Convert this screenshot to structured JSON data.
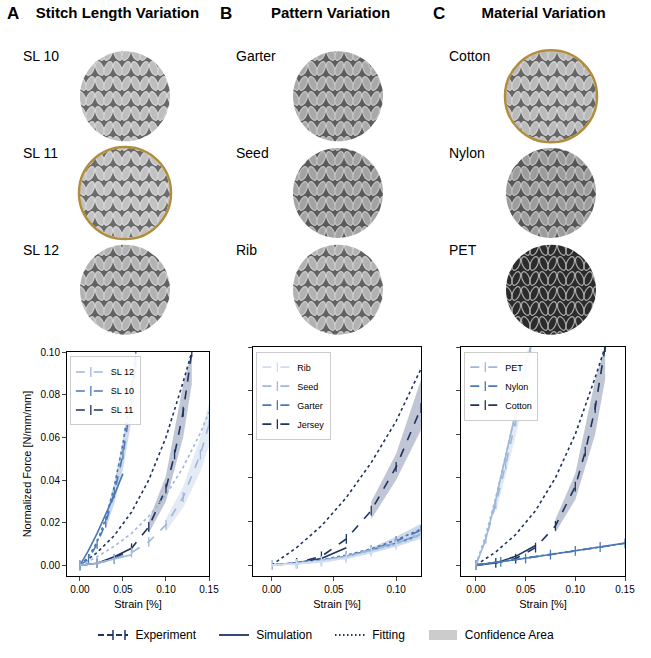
{
  "panels": [
    {
      "letter": "A",
      "title": "Stitch Length Variation",
      "selected": "SL 11",
      "swatches": [
        {
          "label": "SL 10",
          "color": "#bdbdbd"
        },
        {
          "label": "SL 11",
          "color": "#c2c2c2"
        },
        {
          "label": "SL 12",
          "color": "#b3b3b3"
        }
      ]
    },
    {
      "letter": "B",
      "title": "Pattern Variation",
      "swatches": [
        {
          "label": "Garter",
          "color": "#a9a9a9"
        },
        {
          "label": "Seed",
          "color": "#a3a3a3"
        },
        {
          "label": "Rib",
          "color": "#b2b2b2"
        }
      ]
    },
    {
      "letter": "C",
      "title": "Material Variation",
      "selected": "Cotton",
      "swatches": [
        {
          "label": "Cotton",
          "color": "#bababa"
        },
        {
          "label": "Nylon",
          "color": "#9c9c9c"
        },
        {
          "label": "PET",
          "color": "#2b2b2b"
        }
      ]
    }
  ],
  "chart_data": [
    {
      "type": "line",
      "xlabel": "Strain [%]",
      "ylabel": "Normalized Force [N/mm/mm]",
      "legend": "upper left",
      "grid": false,
      "xlim": [
        -0.015,
        0.15
      ],
      "ylim": [
        -0.005,
        0.1
      ],
      "xticks": [
        {
          "value": 0,
          "label": "0.00"
        },
        {
          "value": 0.05,
          "label": "0.05"
        },
        {
          "value": 0.1,
          "label": "0.10"
        },
        {
          "value": 0.15,
          "label": "0.15"
        }
      ],
      "yticks": [
        {
          "value": 0,
          "label": "0.00"
        },
        {
          "value": 0.02,
          "label": "0.02"
        },
        {
          "value": 0.04,
          "label": "0.04"
        },
        {
          "value": 0.06,
          "label": "0.06"
        },
        {
          "value": 0.08,
          "label": "0.08"
        },
        {
          "value": 0.1,
          "label": "0.10"
        }
      ],
      "series": [
        {
          "name": "SL 11",
          "color": "#1d3461",
          "x": [
            0,
            0.02,
            0.04,
            0.06,
            0.08,
            0.1,
            0.11,
            0.12,
            0.13
          ],
          "values": [
            0,
            0.001,
            0.003,
            0.008,
            0.018,
            0.036,
            0.052,
            0.072,
            0.1
          ],
          "simulation": {
            "x": [
              0,
              0.02,
              0.04,
              0.06
            ],
            "values": [
              0,
              0.001,
              0.004,
              0.008
            ]
          },
          "fitting": {
            "x": [
              0,
              0.02,
              0.04,
              0.06,
              0.08,
              0.1,
              0.12,
              0.13
            ],
            "values": [
              0,
              0.006,
              0.014,
              0.025,
              0.04,
              0.06,
              0.086,
              0.1
            ]
          },
          "confidence": {
            "x": [
              0.08,
              0.1,
              0.12,
              0.13
            ],
            "lower": [
              0.015,
              0.03,
              0.06,
              0.085
            ],
            "upper": [
              0.021,
              0.042,
              0.085,
              0.1
            ]
          }
        },
        {
          "name": "SL 10",
          "color": "#4a78b5",
          "x": [
            0,
            0.01,
            0.02,
            0.03,
            0.04,
            0.05,
            0.06,
            0.065
          ],
          "values": [
            0,
            0.003,
            0.01,
            0.02,
            0.034,
            0.052,
            0.078,
            0.095
          ],
          "simulation": {
            "x": [
              0,
              0.01,
              0.02,
              0.03,
              0.04,
              0.05
            ],
            "values": [
              0,
              0.007,
              0.015,
              0.024,
              0.033,
              0.043
            ]
          },
          "fitting": {
            "x": [
              0,
              0.01,
              0.02,
              0.03,
              0.04,
              0.05,
              0.06,
              0.065
            ],
            "values": [
              0,
              0.004,
              0.011,
              0.022,
              0.037,
              0.057,
              0.083,
              0.1
            ]
          },
          "confidence": {
            "x": [
              0.03,
              0.04,
              0.05,
              0.06,
              0.065
            ],
            "lower": [
              0.017,
              0.029,
              0.045,
              0.068,
              0.083
            ],
            "upper": [
              0.023,
              0.039,
              0.059,
              0.088,
              0.1
            ]
          }
        },
        {
          "name": "SL 12",
          "color": "#9db8dc",
          "x": [
            0,
            0.02,
            0.04,
            0.06,
            0.08,
            0.1,
            0.12,
            0.14,
            0.15
          ],
          "values": [
            0,
            0.001,
            0.003,
            0.006,
            0.011,
            0.019,
            0.032,
            0.052,
            0.066
          ],
          "simulation": {
            "x": [
              0,
              0.02,
              0.04,
              0.06
            ],
            "values": [
              0,
              0.001,
              0.003,
              0.005
            ]
          },
          "fitting": {
            "x": [
              0,
              0.02,
              0.04,
              0.06,
              0.08,
              0.1,
              0.12,
              0.14,
              0.15
            ],
            "values": [
              0,
              0.004,
              0.009,
              0.015,
              0.023,
              0.033,
              0.046,
              0.062,
              0.072
            ]
          },
          "confidence": {
            "x": [
              0.1,
              0.12,
              0.14,
              0.15
            ],
            "lower": [
              0.016,
              0.027,
              0.044,
              0.056
            ],
            "upper": [
              0.022,
              0.037,
              0.06,
              0.076
            ]
          }
        }
      ]
    },
    {
      "type": "line",
      "xlabel": "Strain [%]",
      "legend": "upper left",
      "grid": false,
      "tick_labels": "x",
      "xlim": [
        -0.015,
        0.12
      ],
      "ylim": [
        -0.005,
        0.1
      ],
      "xticks": [
        {
          "value": 0,
          "label": "0.00"
        },
        {
          "value": 0.05,
          "label": "0.05"
        },
        {
          "value": 0.1,
          "label": "0.10"
        }
      ],
      "yticks": [
        0,
        0.02,
        0.04,
        0.06,
        0.08,
        0.1
      ],
      "series": [
        {
          "name": "Jersey",
          "color": "#1d3461",
          "x": [
            0,
            0.02,
            0.04,
            0.06,
            0.08,
            0.1,
            0.12
          ],
          "values": [
            0,
            0.001,
            0.004,
            0.012,
            0.025,
            0.045,
            0.072
          ],
          "simulation": {
            "x": [
              0,
              0.02,
              0.04,
              0.06
            ],
            "values": [
              0,
              0.001,
              0.003,
              0.008
            ]
          },
          "fitting": {
            "x": [
              0,
              0.02,
              0.04,
              0.06,
              0.08,
              0.1,
              0.12
            ],
            "values": [
              0,
              0.008,
              0.018,
              0.031,
              0.047,
              0.066,
              0.09
            ]
          },
          "confidence": {
            "x": [
              0.08,
              0.1,
              0.12
            ],
            "lower": [
              0.021,
              0.039,
              0.062
            ],
            "upper": [
              0.029,
              0.051,
              0.085
            ]
          }
        },
        {
          "name": "Garter",
          "color": "#4a78b5",
          "x": [
            0,
            0.02,
            0.04,
            0.06,
            0.08,
            0.1,
            0.12
          ],
          "values": [
            0,
            0.0005,
            0.002,
            0.004,
            0.007,
            0.011,
            0.016
          ],
          "simulation": {
            "x": [
              0,
              0.02,
              0.04,
              0.06,
              0.08,
              0.1,
              0.12
            ],
            "values": [
              0,
              0.001,
              0.002,
              0.004,
              0.007,
              0.01,
              0.014
            ]
          },
          "fitting": {
            "x": [
              0,
              0.02,
              0.04,
              0.06,
              0.08,
              0.1,
              0.12
            ],
            "values": [
              0,
              0.001,
              0.0025,
              0.0045,
              0.0075,
              0.0115,
              0.0165
            ]
          },
          "confidence": {
            "x": [
              0.08,
              0.1,
              0.12
            ],
            "lower": [
              0.006,
              0.009,
              0.013
            ],
            "upper": [
              0.008,
              0.013,
              0.019
            ]
          }
        },
        {
          "name": "Seed",
          "color": "#9db8dc",
          "x": [
            0,
            0.02,
            0.04,
            0.06,
            0.08,
            0.1,
            0.12
          ],
          "values": [
            0,
            0.0005,
            0.002,
            0.004,
            0.007,
            0.01,
            0.014
          ],
          "simulation": {
            "x": [
              0,
              0.02,
              0.04,
              0.06,
              0.08,
              0.1,
              0.12
            ],
            "values": [
              0,
              0.0008,
              0.002,
              0.0038,
              0.0065,
              0.0095,
              0.013
            ]
          },
          "fitting": {
            "x": [
              0,
              0.02,
              0.04,
              0.06,
              0.08,
              0.1,
              0.12
            ],
            "values": [
              0,
              0.001,
              0.0022,
              0.004,
              0.0068,
              0.0102,
              0.0145
            ]
          }
        },
        {
          "name": "Rib",
          "color": "#d0ddef",
          "x": [
            0,
            0.02,
            0.04,
            0.06,
            0.08,
            0.1,
            0.12
          ],
          "values": [
            0,
            0.0005,
            0.0015,
            0.003,
            0.006,
            0.009,
            0.013
          ],
          "simulation": {
            "x": [
              0,
              0.02,
              0.04,
              0.06,
              0.08,
              0.1,
              0.12
            ],
            "values": [
              0,
              0.0006,
              0.0016,
              0.0032,
              0.0058,
              0.0088,
              0.0125
            ]
          },
          "fitting": {
            "x": [
              0,
              0.02,
              0.04,
              0.06,
              0.08,
              0.1,
              0.12
            ],
            "values": [
              0,
              0.0008,
              0.0018,
              0.0035,
              0.006,
              0.0092,
              0.0132
            ]
          }
        }
      ]
    },
    {
      "type": "line",
      "xlabel": "Strain [%]",
      "legend": "upper left",
      "grid": false,
      "tick_labels": "x",
      "xlim": [
        -0.015,
        0.15
      ],
      "ylim": [
        -0.005,
        0.1
      ],
      "xticks": [
        {
          "value": 0,
          "label": "0.00"
        },
        {
          "value": 0.05,
          "label": "0.05"
        },
        {
          "value": 0.1,
          "label": "0.10"
        },
        {
          "value": 0.15,
          "label": "0.15"
        }
      ],
      "yticks": [
        0,
        0.02,
        0.04,
        0.06,
        0.08,
        0.1
      ],
      "series": [
        {
          "name": "Cotton",
          "color": "#1d3461",
          "x": [
            0,
            0.02,
            0.04,
            0.06,
            0.08,
            0.1,
            0.11,
            0.12,
            0.13
          ],
          "values": [
            0,
            0.001,
            0.003,
            0.008,
            0.018,
            0.036,
            0.052,
            0.072,
            0.1
          ],
          "simulation": {
            "x": [
              0,
              0.02,
              0.04,
              0.06
            ],
            "values": [
              0,
              0.001,
              0.004,
              0.009
            ]
          },
          "fitting": {
            "x": [
              0,
              0.02,
              0.04,
              0.06,
              0.08,
              0.1,
              0.12,
              0.13
            ],
            "values": [
              0,
              0.006,
              0.014,
              0.025,
              0.04,
              0.06,
              0.086,
              0.1
            ]
          },
          "confidence": {
            "x": [
              0.08,
              0.1,
              0.12,
              0.13
            ],
            "lower": [
              0.015,
              0.03,
              0.06,
              0.085
            ],
            "upper": [
              0.021,
              0.042,
              0.085,
              0.1
            ]
          }
        },
        {
          "name": "Nylon",
          "color": "#4a78b5",
          "x": [
            0,
            0.025,
            0.05,
            0.075,
            0.1,
            0.125,
            0.15
          ],
          "values": [
            0,
            0.0015,
            0.003,
            0.0048,
            0.0065,
            0.0083,
            0.01
          ],
          "simulation": {
            "x": [
              0,
              0.05,
              0.1,
              0.15
            ],
            "values": [
              0,
              0.0031,
              0.0066,
              0.0101
            ]
          },
          "fitting": {
            "x": [
              0,
              0.05,
              0.1,
              0.15
            ],
            "values": [
              0,
              0.0032,
              0.0066,
              0.01
            ]
          }
        },
        {
          "name": "PET",
          "color": "#9db8dc",
          "x": [
            0,
            0.01,
            0.02,
            0.03,
            0.04,
            0.05,
            0.055
          ],
          "values": [
            0,
            0.012,
            0.028,
            0.046,
            0.066,
            0.088,
            0.1
          ],
          "simulation": {
            "x": [
              0,
              0.01,
              0.02,
              0.03,
              0.04
            ],
            "values": [
              0,
              0.012,
              0.03,
              0.05,
              0.07
            ]
          },
          "fitting": {
            "x": [
              0,
              0.01,
              0.02,
              0.03,
              0.04,
              0.05,
              0.055
            ],
            "values": [
              0,
              0.014,
              0.031,
              0.05,
              0.07,
              0.092,
              0.1
            ]
          },
          "confidence": {
            "x": [
              0.02,
              0.03,
              0.04,
              0.05,
              0.055
            ],
            "lower": [
              0.024,
              0.041,
              0.059,
              0.079,
              0.09
            ],
            "upper": [
              0.032,
              0.051,
              0.073,
              0.097,
              0.1
            ]
          }
        }
      ]
    }
  ],
  "legend_key": [
    {
      "label": "Experiment",
      "line_style": "dashed",
      "marker": "tick"
    },
    {
      "label": "Simulation",
      "line_style": "solid"
    },
    {
      "label": "Fitting",
      "line_style": "dotted"
    },
    {
      "label": "Confidence Area",
      "line_style": "area",
      "color": "#cccccc"
    }
  ]
}
